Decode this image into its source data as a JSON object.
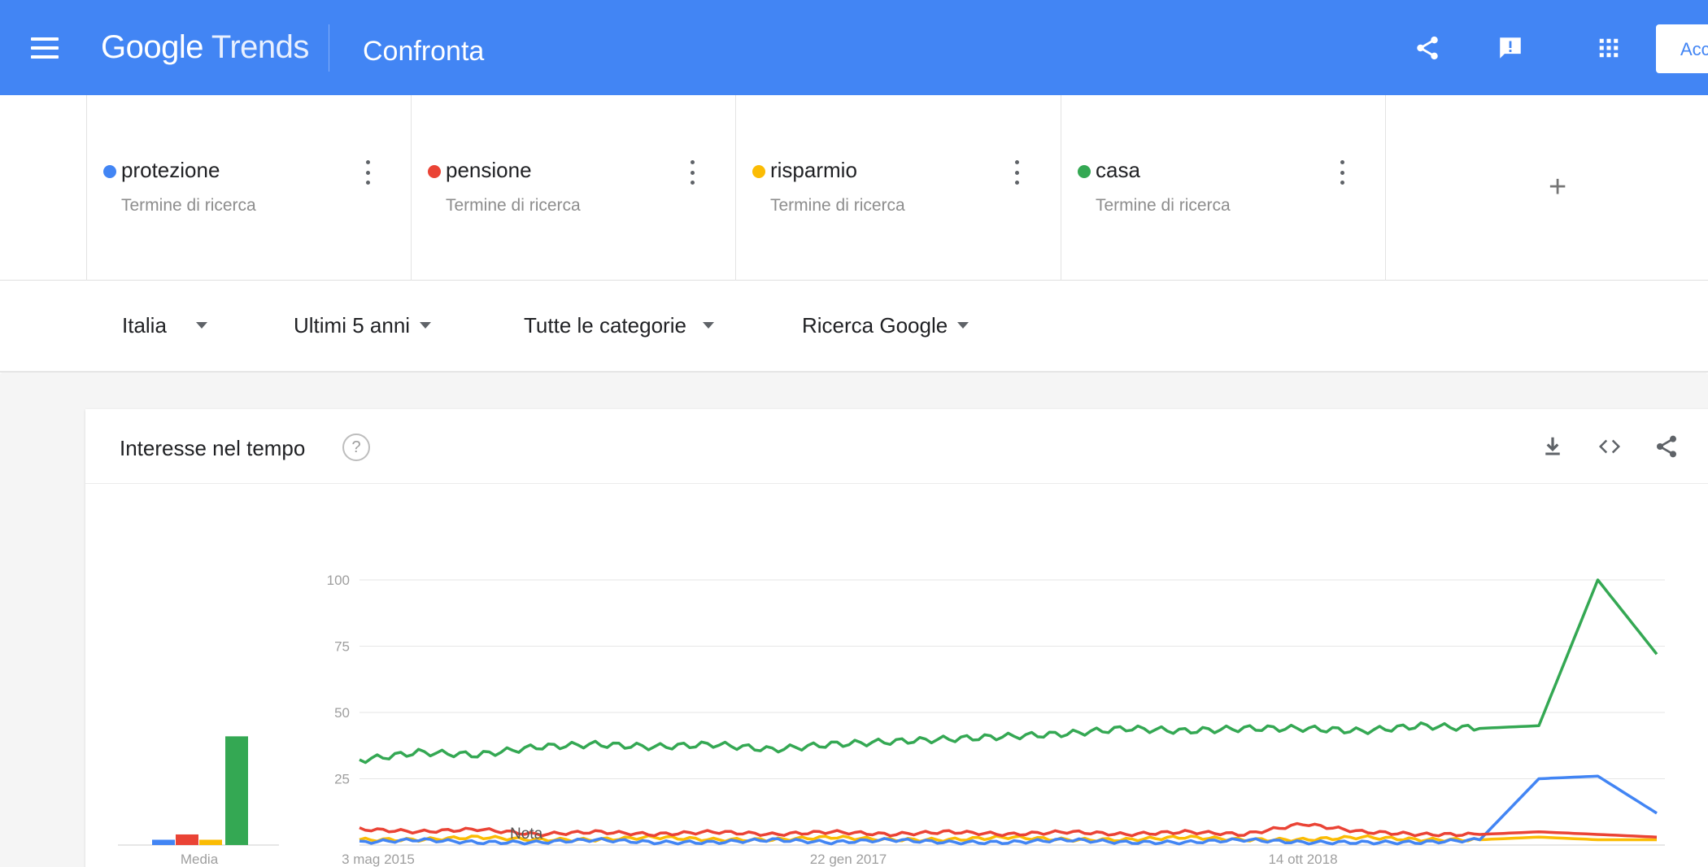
{
  "header": {
    "logo_google": "Google",
    "logo_trends": "Trends",
    "title": "Confronta",
    "icons": [
      "menu-icon",
      "share-icon",
      "feedback-icon",
      "apps-icon"
    ],
    "signin_label": "Acc",
    "brand_color": "#4285f4"
  },
  "terms": [
    {
      "name": "protezione",
      "type": "Termine di ricerca",
      "color": "#4285f4"
    },
    {
      "name": "pensione",
      "type": "Termine di ricerca",
      "color": "#ea4335"
    },
    {
      "name": "risparmio",
      "type": "Termine di ricerca",
      "color": "#fbbc04"
    },
    {
      "name": "casa",
      "type": "Termine di ricerca",
      "color": "#34a853"
    }
  ],
  "add_term_label": "+",
  "filters": {
    "region": "Italia",
    "period": "Ultimi 5 anni",
    "category": "Tutte le categorie",
    "source": "Ricerca Google"
  },
  "card": {
    "title": "Interesse nel tempo",
    "help": "?",
    "actions": [
      "download-icon",
      "embed-icon",
      "share-icon"
    ]
  },
  "chart_data": {
    "type": "line",
    "title": "",
    "ylim": [
      0,
      100
    ],
    "y_ticks": [
      "100",
      "75",
      "50",
      "25"
    ],
    "x_tick_labels": [
      "3 mag 2015",
      "22 gen 2017",
      "14 ott 2018"
    ],
    "note_label": "Nota",
    "average_label": "Media",
    "averages": [
      {
        "term": "protezione",
        "value": 2
      },
      {
        "term": "pensione",
        "value": 4
      },
      {
        "term": "risparmio",
        "value": 2
      },
      {
        "term": "casa",
        "value": 41
      }
    ],
    "x": [
      "2015-05",
      "2015-08",
      "2015-11",
      "2016-02",
      "2016-05",
      "2016-08",
      "2016-11",
      "2017-02",
      "2017-05",
      "2017-08",
      "2017-11",
      "2018-02",
      "2018-05",
      "2018-08",
      "2018-11",
      "2019-02",
      "2019-05",
      "2019-08",
      "2019-11",
      "2020-02",
      "2020-03",
      "2020-04",
      "2020-05"
    ],
    "series": [
      {
        "name": "protezione",
        "color": "#4285f4",
        "values": [
          1,
          2,
          1,
          1,
          2,
          1,
          1,
          2,
          1,
          2,
          1,
          1,
          2,
          1,
          1,
          2,
          1,
          1,
          1,
          2,
          25,
          26,
          12
        ]
      },
      {
        "name": "pensione",
        "color": "#ea4335",
        "values": [
          6,
          5,
          6,
          4,
          5,
          4,
          5,
          4,
          5,
          4,
          5,
          4,
          5,
          4,
          5,
          4,
          8,
          5,
          4,
          4,
          5,
          4,
          3
        ]
      },
      {
        "name": "risparmio",
        "color": "#fbbc04",
        "values": [
          2,
          2,
          3,
          2,
          2,
          3,
          2,
          2,
          3,
          2,
          2,
          3,
          2,
          2,
          3,
          2,
          2,
          3,
          2,
          2,
          3,
          2,
          2
        ]
      },
      {
        "name": "casa",
        "color": "#34a853",
        "values": [
          32,
          35,
          34,
          37,
          38,
          37,
          38,
          36,
          38,
          39,
          40,
          41,
          42,
          44,
          43,
          44,
          44,
          43,
          45,
          44,
          45,
          100,
          72
        ]
      }
    ]
  }
}
